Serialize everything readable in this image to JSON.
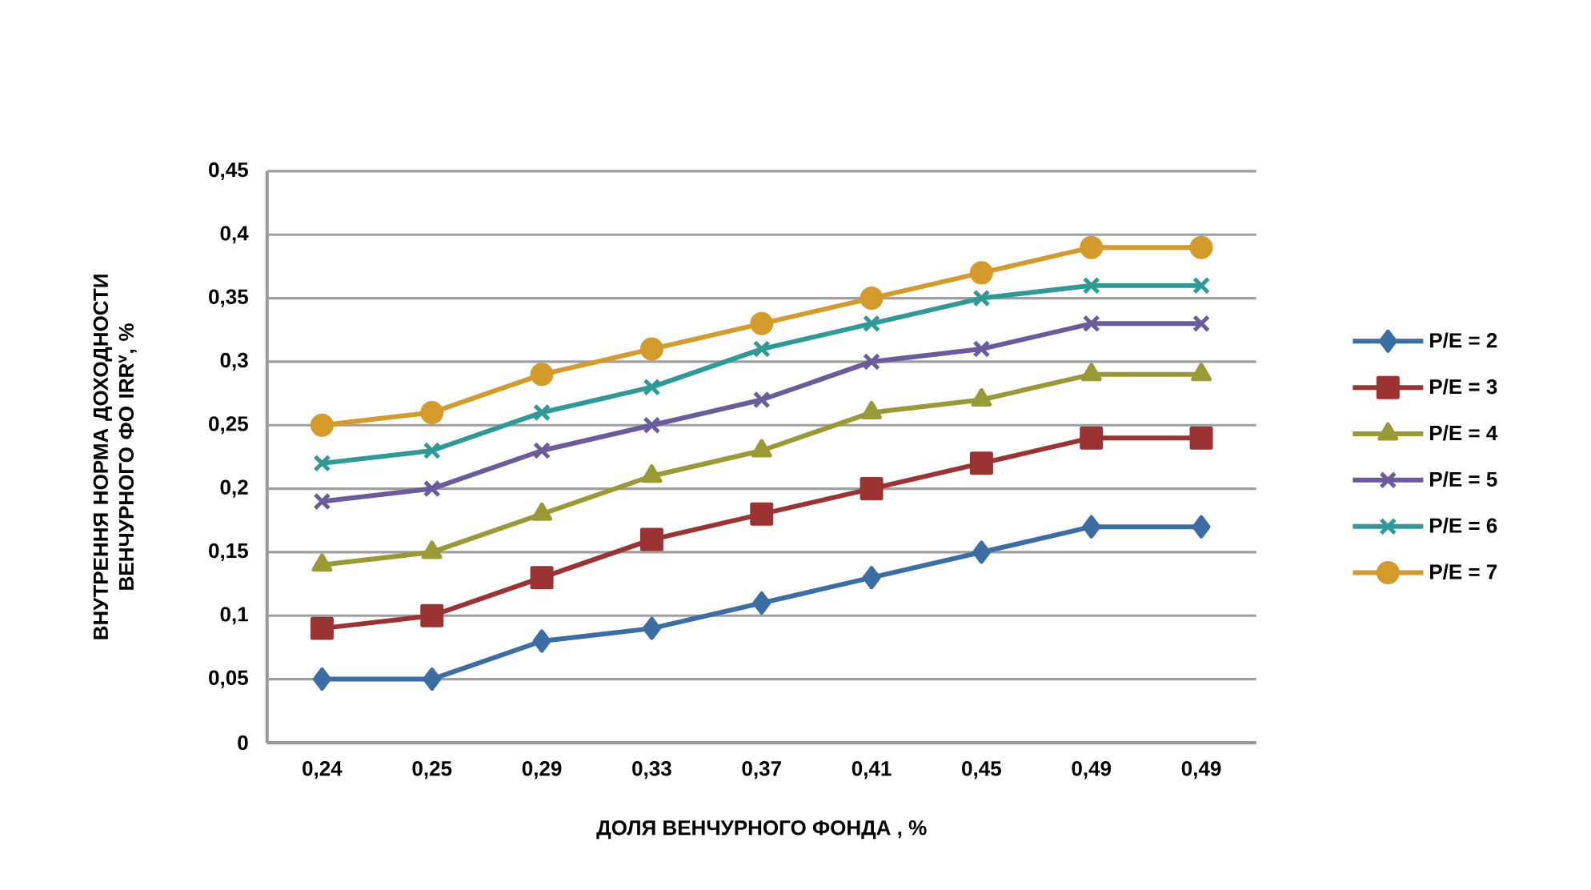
{
  "chart_data": {
    "type": "line",
    "ylabel": "ВНУТРЕННЯ НОРМА ДОХОДНОСТИ ВЕНЧУРНОГО ФО IRR$^{v}$, %",
    "xlabel": "ДОЛЯ ВЕНЧУРНОГО ФОНДА , %",
    "categories": [
      "0,24",
      "0,25",
      "0,29",
      "0,33",
      "0,37",
      "0,41",
      "0,45",
      "0,49",
      "0,49"
    ],
    "ylim": [
      0,
      0.45
    ],
    "yticks": [
      {
        "value": 0,
        "label": "0"
      },
      {
        "value": 0.05,
        "label": "0,05"
      },
      {
        "value": 0.1,
        "label": "0,1"
      },
      {
        "value": 0.15,
        "label": "0,15"
      },
      {
        "value": 0.2,
        "label": "0,2"
      },
      {
        "value": 0.25,
        "label": "0,25"
      },
      {
        "value": 0.3,
        "label": "0,3"
      },
      {
        "value": 0.35,
        "label": "0,35"
      },
      {
        "value": 0.4,
        "label": "0,4"
      },
      {
        "value": 0.45,
        "label": "0,45"
      }
    ],
    "grid": "y",
    "legend": "right",
    "series": [
      {
        "name": "P/E = 2",
        "color": "#3a6ea5",
        "marker": "diamond",
        "values": [
          0.05,
          0.05,
          0.08,
          0.09,
          0.11,
          0.13,
          0.15,
          0.17,
          0.17
        ]
      },
      {
        "name": "P/E = 3",
        "color": "#9b3333",
        "marker": "square",
        "values": [
          0.09,
          0.1,
          0.13,
          0.16,
          0.18,
          0.2,
          0.22,
          0.24,
          0.24
        ]
      },
      {
        "name": "P/E = 4",
        "color": "#9a9a34",
        "marker": "triangle",
        "values": [
          0.14,
          0.15,
          0.18,
          0.21,
          0.23,
          0.26,
          0.27,
          0.29,
          0.29
        ]
      },
      {
        "name": "P/E = 5",
        "color": "#6a5c9c",
        "marker": "cross",
        "values": [
          0.19,
          0.2,
          0.23,
          0.25,
          0.27,
          0.3,
          0.31,
          0.33,
          0.33
        ]
      },
      {
        "name": "P/E = 6",
        "color": "#2e9a98",
        "marker": "cross",
        "values": [
          0.22,
          0.23,
          0.26,
          0.28,
          0.31,
          0.33,
          0.35,
          0.36,
          0.36
        ]
      },
      {
        "name": "P/E = 7",
        "color": "#d49a2a",
        "marker": "circle",
        "values": [
          0.25,
          0.26,
          0.29,
          0.31,
          0.33,
          0.35,
          0.37,
          0.39,
          0.39
        ]
      }
    ]
  }
}
